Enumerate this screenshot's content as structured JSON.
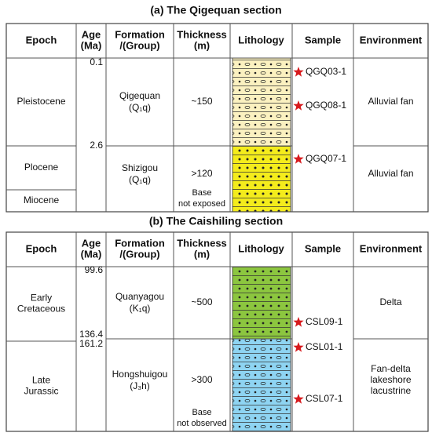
{
  "sections": [
    {
      "title": "(a) The Qigequan section",
      "headers": [
        [
          "Epoch"
        ],
        [
          "Age",
          "(Ma)"
        ],
        [
          "Formation",
          "/(Group)"
        ],
        [
          "Thickness",
          "(m)"
        ],
        [
          "Lithology"
        ],
        [
          "Sample"
        ],
        [
          "Environment"
        ]
      ],
      "epochs": [
        [
          "Pleistocene"
        ],
        [
          "Plocene"
        ],
        [
          "Miocene"
        ]
      ],
      "ages": [
        "0.1",
        "2.6"
      ],
      "formations": [
        {
          "name": "Qigequan",
          "code": "(Q₁q)"
        },
        {
          "name": "Shizigou",
          "code": "(Q₁q)"
        }
      ],
      "thickness": [
        "~150",
        ">120"
      ],
      "base_note": [
        "Base",
        "not exposed"
      ],
      "samples": [
        "QGQ03-1",
        "QGQ08-1",
        "QGQ07-1"
      ],
      "environments": [
        [
          "Alluvial fan"
        ],
        [
          "Alluvial fan"
        ]
      ]
    },
    {
      "title": "(b) The Caishiling section",
      "headers": [
        [
          "Epoch"
        ],
        [
          "Age",
          "(Ma)"
        ],
        [
          "Formation",
          "/(Group)"
        ],
        [
          "Thickness",
          "(m)"
        ],
        [
          "Lithology"
        ],
        [
          "Sample"
        ],
        [
          "Environment"
        ]
      ],
      "epochs": [
        [
          "Early",
          "Cretaceous"
        ],
        [
          "Late",
          "Jurassic"
        ]
      ],
      "ages": [
        "99.6",
        "136.4",
        "161.2"
      ],
      "formations": [
        {
          "name": "Quanyagou",
          "code": "(K₁q)"
        },
        {
          "name": "Hongshuigou",
          "code": "(J₃h)"
        }
      ],
      "thickness": [
        "~500",
        ">300"
      ],
      "base_note": [
        "Base",
        "not observed"
      ],
      "samples": [
        "CSL09-1",
        "CSL01-1",
        "CSL07-1"
      ],
      "environments": [
        [
          "Delta"
        ],
        [
          "Fan-delta",
          "lakeshore",
          "lacustrine"
        ]
      ]
    }
  ]
}
